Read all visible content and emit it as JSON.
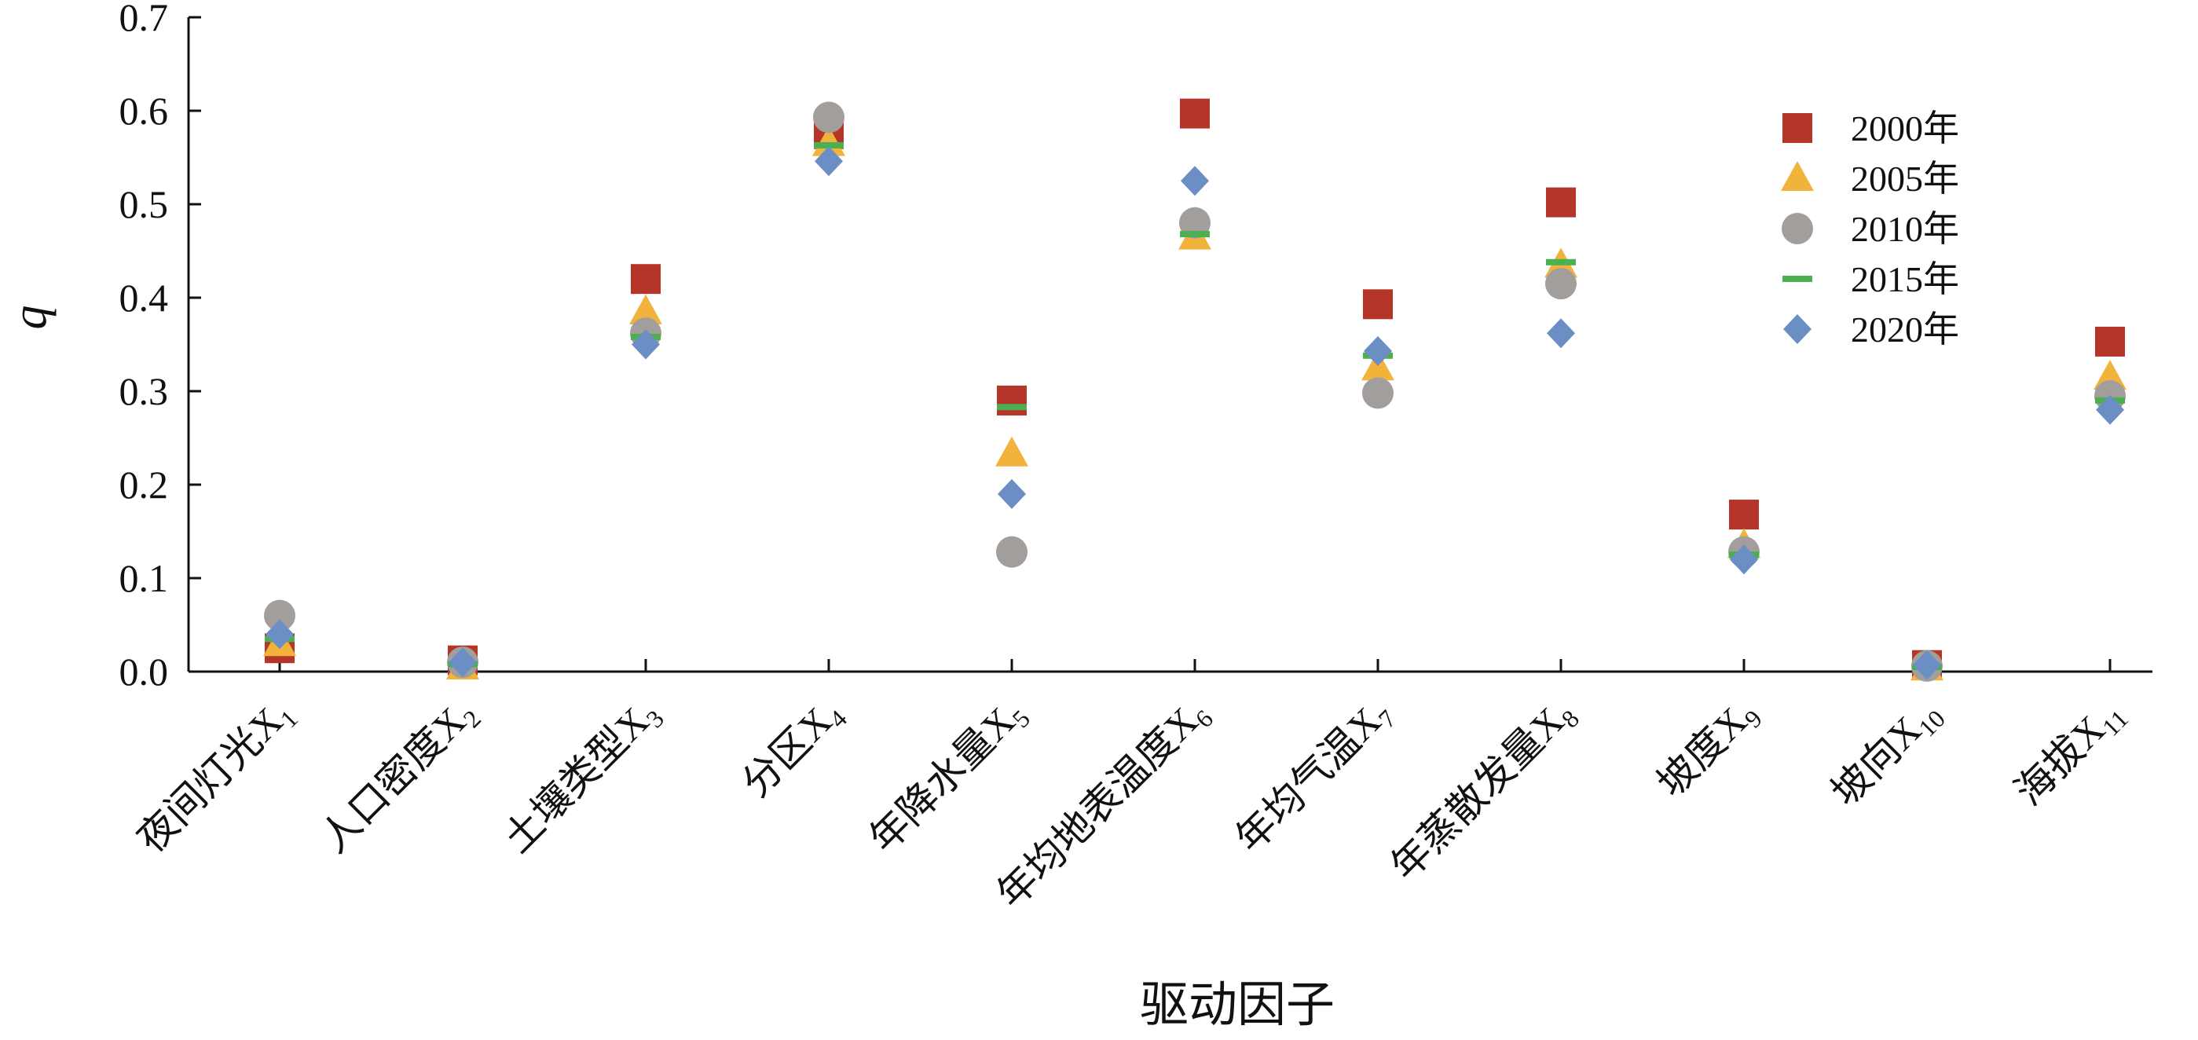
{
  "chart_data": {
    "type": "scatter",
    "title": "",
    "xlabel": "驱动因子",
    "ylabel": "q",
    "ylim": [
      0,
      0.7
    ],
    "yticks": [
      "0.0",
      "0.1",
      "0.2",
      "0.3",
      "0.4",
      "0.5",
      "0.6",
      "0.7"
    ],
    "grid": false,
    "legend_position": "top-right",
    "categories": [
      {
        "base": "夜间灯光X",
        "sub": "1"
      },
      {
        "base": "人口密度X",
        "sub": "2"
      },
      {
        "base": "土壤类型X",
        "sub": "3"
      },
      {
        "base": "分区X",
        "sub": "4"
      },
      {
        "base": "年降水量X",
        "sub": "5"
      },
      {
        "base": "年均地表温度X",
        "sub": "6"
      },
      {
        "base": "年均气温X",
        "sub": "7"
      },
      {
        "base": "年蒸散发量X",
        "sub": "8"
      },
      {
        "base": "坡度X",
        "sub": "9"
      },
      {
        "base": "坡向X",
        "sub": "10"
      },
      {
        "base": "海拔X",
        "sub": "11"
      }
    ],
    "series": [
      {
        "name": "2000年",
        "marker": "square",
        "color": "#b5352b",
        "values": [
          0.025,
          0.012,
          0.42,
          0.575,
          0.29,
          0.597,
          0.393,
          0.502,
          0.168,
          0.007,
          0.353
        ]
      },
      {
        "name": "2005年",
        "marker": "triangle",
        "color": "#f2b33d",
        "values": [
          0.03,
          0.005,
          0.385,
          0.565,
          0.233,
          0.465,
          0.325,
          0.435,
          0.135,
          0.004,
          0.315
        ]
      },
      {
        "name": "2010年",
        "marker": "circle",
        "color": "#a29e9c",
        "values": [
          0.06,
          0.01,
          0.362,
          0.593,
          0.128,
          0.48,
          0.298,
          0.415,
          0.128,
          0.006,
          0.295
        ]
      },
      {
        "name": "2015年",
        "marker": "dash",
        "color": "#4caf50",
        "values": [
          0.035,
          0.008,
          0.358,
          0.563,
          0.283,
          0.468,
          0.338,
          0.438,
          0.125,
          0.005,
          0.29
        ]
      },
      {
        "name": "2020年",
        "marker": "diamond",
        "color": "#6b8fc4",
        "values": [
          0.04,
          0.01,
          0.35,
          0.546,
          0.19,
          0.525,
          0.343,
          0.362,
          0.12,
          0.007,
          0.28
        ]
      }
    ]
  }
}
